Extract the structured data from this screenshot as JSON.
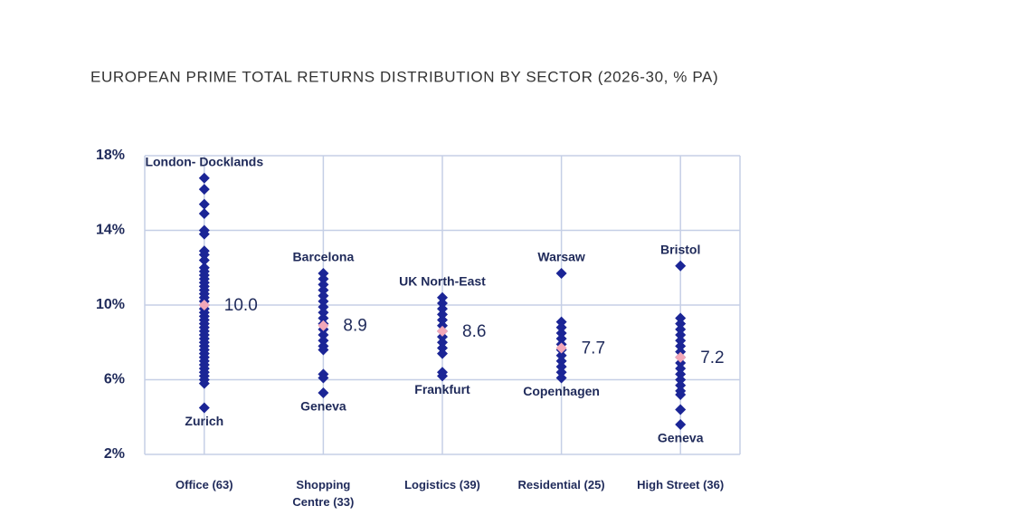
{
  "chart_data": {
    "type": "strip",
    "title": "EUROPEAN PRIME TOTAL RETURNS DISTRIBUTION BY SECTOR (2026-30, % PA)",
    "categories": [
      "Office (63)",
      "Shopping Centre (33)",
      "Logistics (39)",
      "Residential (25)",
      "High Street (36)"
    ],
    "series": [
      {
        "values": [
          16.8,
          16.2,
          15.4,
          14.9,
          14.0,
          13.8,
          12.9,
          12.7,
          12.4,
          12.0,
          11.8,
          11.6,
          11.4,
          11.2,
          11.0,
          10.8,
          10.6,
          10.4,
          10.2,
          10.0,
          9.8,
          9.6,
          9.4,
          9.2,
          9.0,
          8.8,
          8.6,
          8.4,
          8.2,
          8.0,
          7.8,
          7.6,
          7.4,
          7.2,
          7.0,
          6.8,
          6.6,
          6.4,
          6.2,
          6.0,
          5.8,
          4.5
        ]
      },
      {
        "values": [
          11.7,
          11.4,
          11.1,
          10.8,
          10.5,
          10.2,
          9.9,
          9.6,
          9.3,
          9.0,
          8.7,
          8.4,
          8.1,
          7.8,
          7.6,
          6.3,
          6.1,
          5.3
        ]
      },
      {
        "values": [
          10.4,
          10.1,
          9.8,
          9.5,
          9.2,
          8.9,
          8.6,
          8.3,
          8.0,
          7.7,
          7.4,
          6.4,
          6.2
        ]
      },
      {
        "values": [
          11.7,
          9.1,
          8.8,
          8.5,
          8.2,
          7.9,
          7.6,
          7.3,
          7.0,
          6.7,
          6.4,
          6.1
        ]
      },
      {
        "values": [
          12.1,
          9.3,
          9.0,
          8.7,
          8.4,
          8.1,
          7.8,
          7.5,
          7.2,
          6.9,
          6.6,
          6.3,
          6.0,
          5.7,
          5.4,
          5.2,
          4.4,
          3.6
        ]
      }
    ],
    "color": "#1b2596",
    "means": [
      10.0,
      8.9,
      8.6,
      7.7,
      7.2
    ],
    "mean_labels": [
      "10.0",
      "8.9",
      "8.6",
      "7.7",
      "7.2"
    ],
    "mean_color": "#f2a7b8",
    "top_labels": [
      "London- Docklands",
      "Barcelona",
      "UK North-East",
      "Warsaw",
      "Bristol"
    ],
    "bottom_labels": [
      "Zurich",
      "Geneva",
      "Frankfurt",
      "Copenhagen",
      "Geneva"
    ],
    "ylim": [
      2,
      18
    ],
    "yticks": [
      {
        "value": 2,
        "label": "2%"
      },
      {
        "value": 6,
        "label": "6%"
      },
      {
        "value": 10,
        "label": "10%"
      },
      {
        "value": 14,
        "label": "14%"
      },
      {
        "value": 18,
        "label": "18%"
      }
    ],
    "grid": true
  }
}
